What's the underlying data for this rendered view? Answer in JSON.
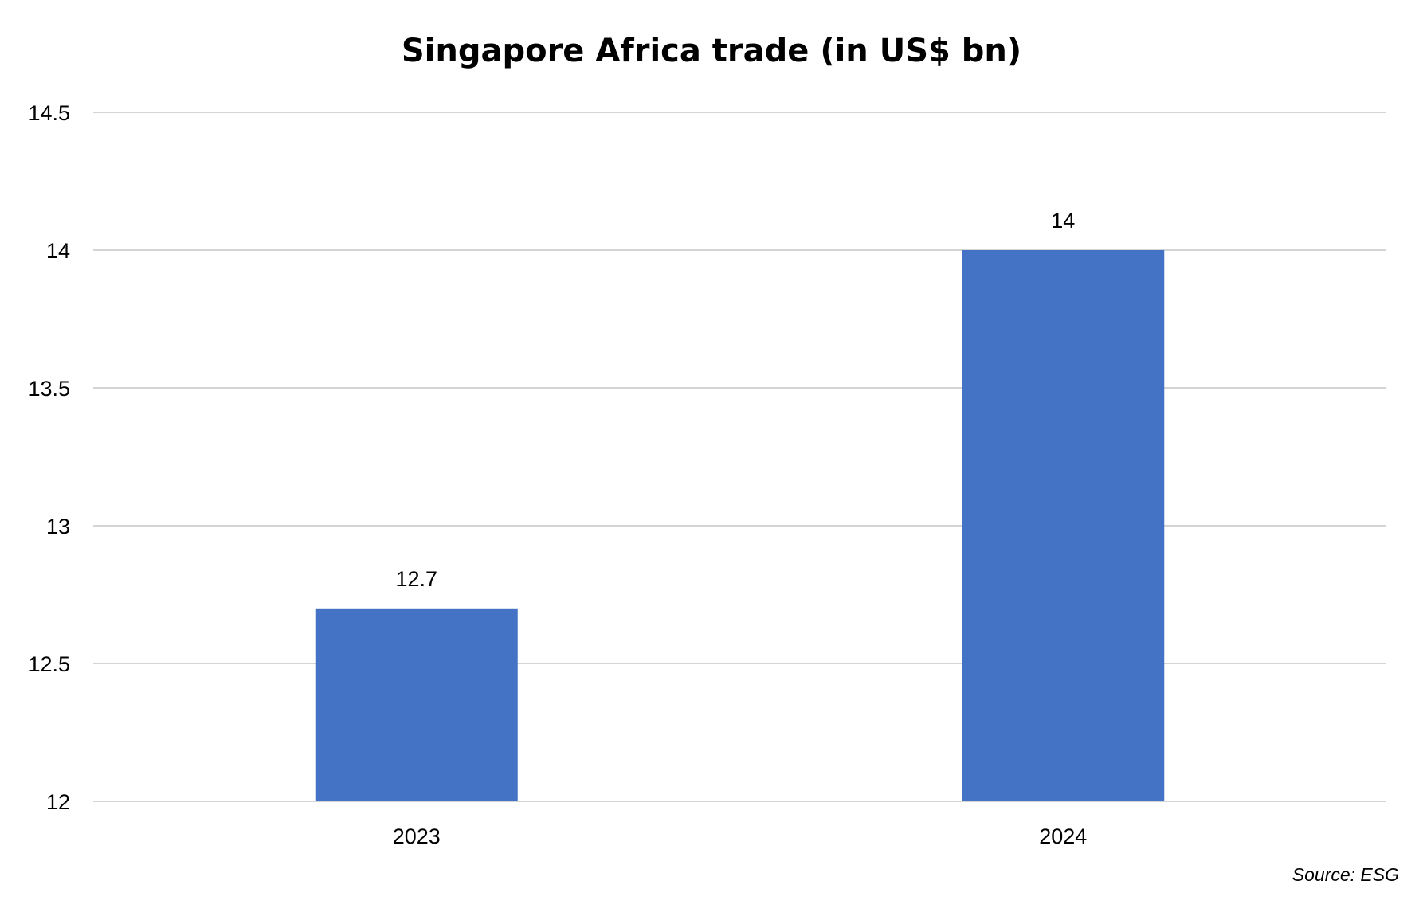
{
  "chart_data": {
    "type": "bar",
    "title": "Singapore Africa trade (in US$ bn)",
    "xlabel": "",
    "ylabel": "",
    "categories": [
      "2023",
      "2024"
    ],
    "values": [
      12.7,
      14
    ],
    "data_labels": [
      "12.7",
      "14"
    ],
    "ylim": [
      12,
      14.5
    ],
    "y_ticks": [
      12,
      12.5,
      13,
      13.5,
      14,
      14.5
    ],
    "y_tick_labels": [
      "12",
      "12.5",
      "13",
      "13.5",
      "14",
      "14.5"
    ],
    "grid": true,
    "legend": "none",
    "bar_color": "#4472c4",
    "grid_color": "#d4d4d4"
  },
  "source_note": "Source: ESG"
}
